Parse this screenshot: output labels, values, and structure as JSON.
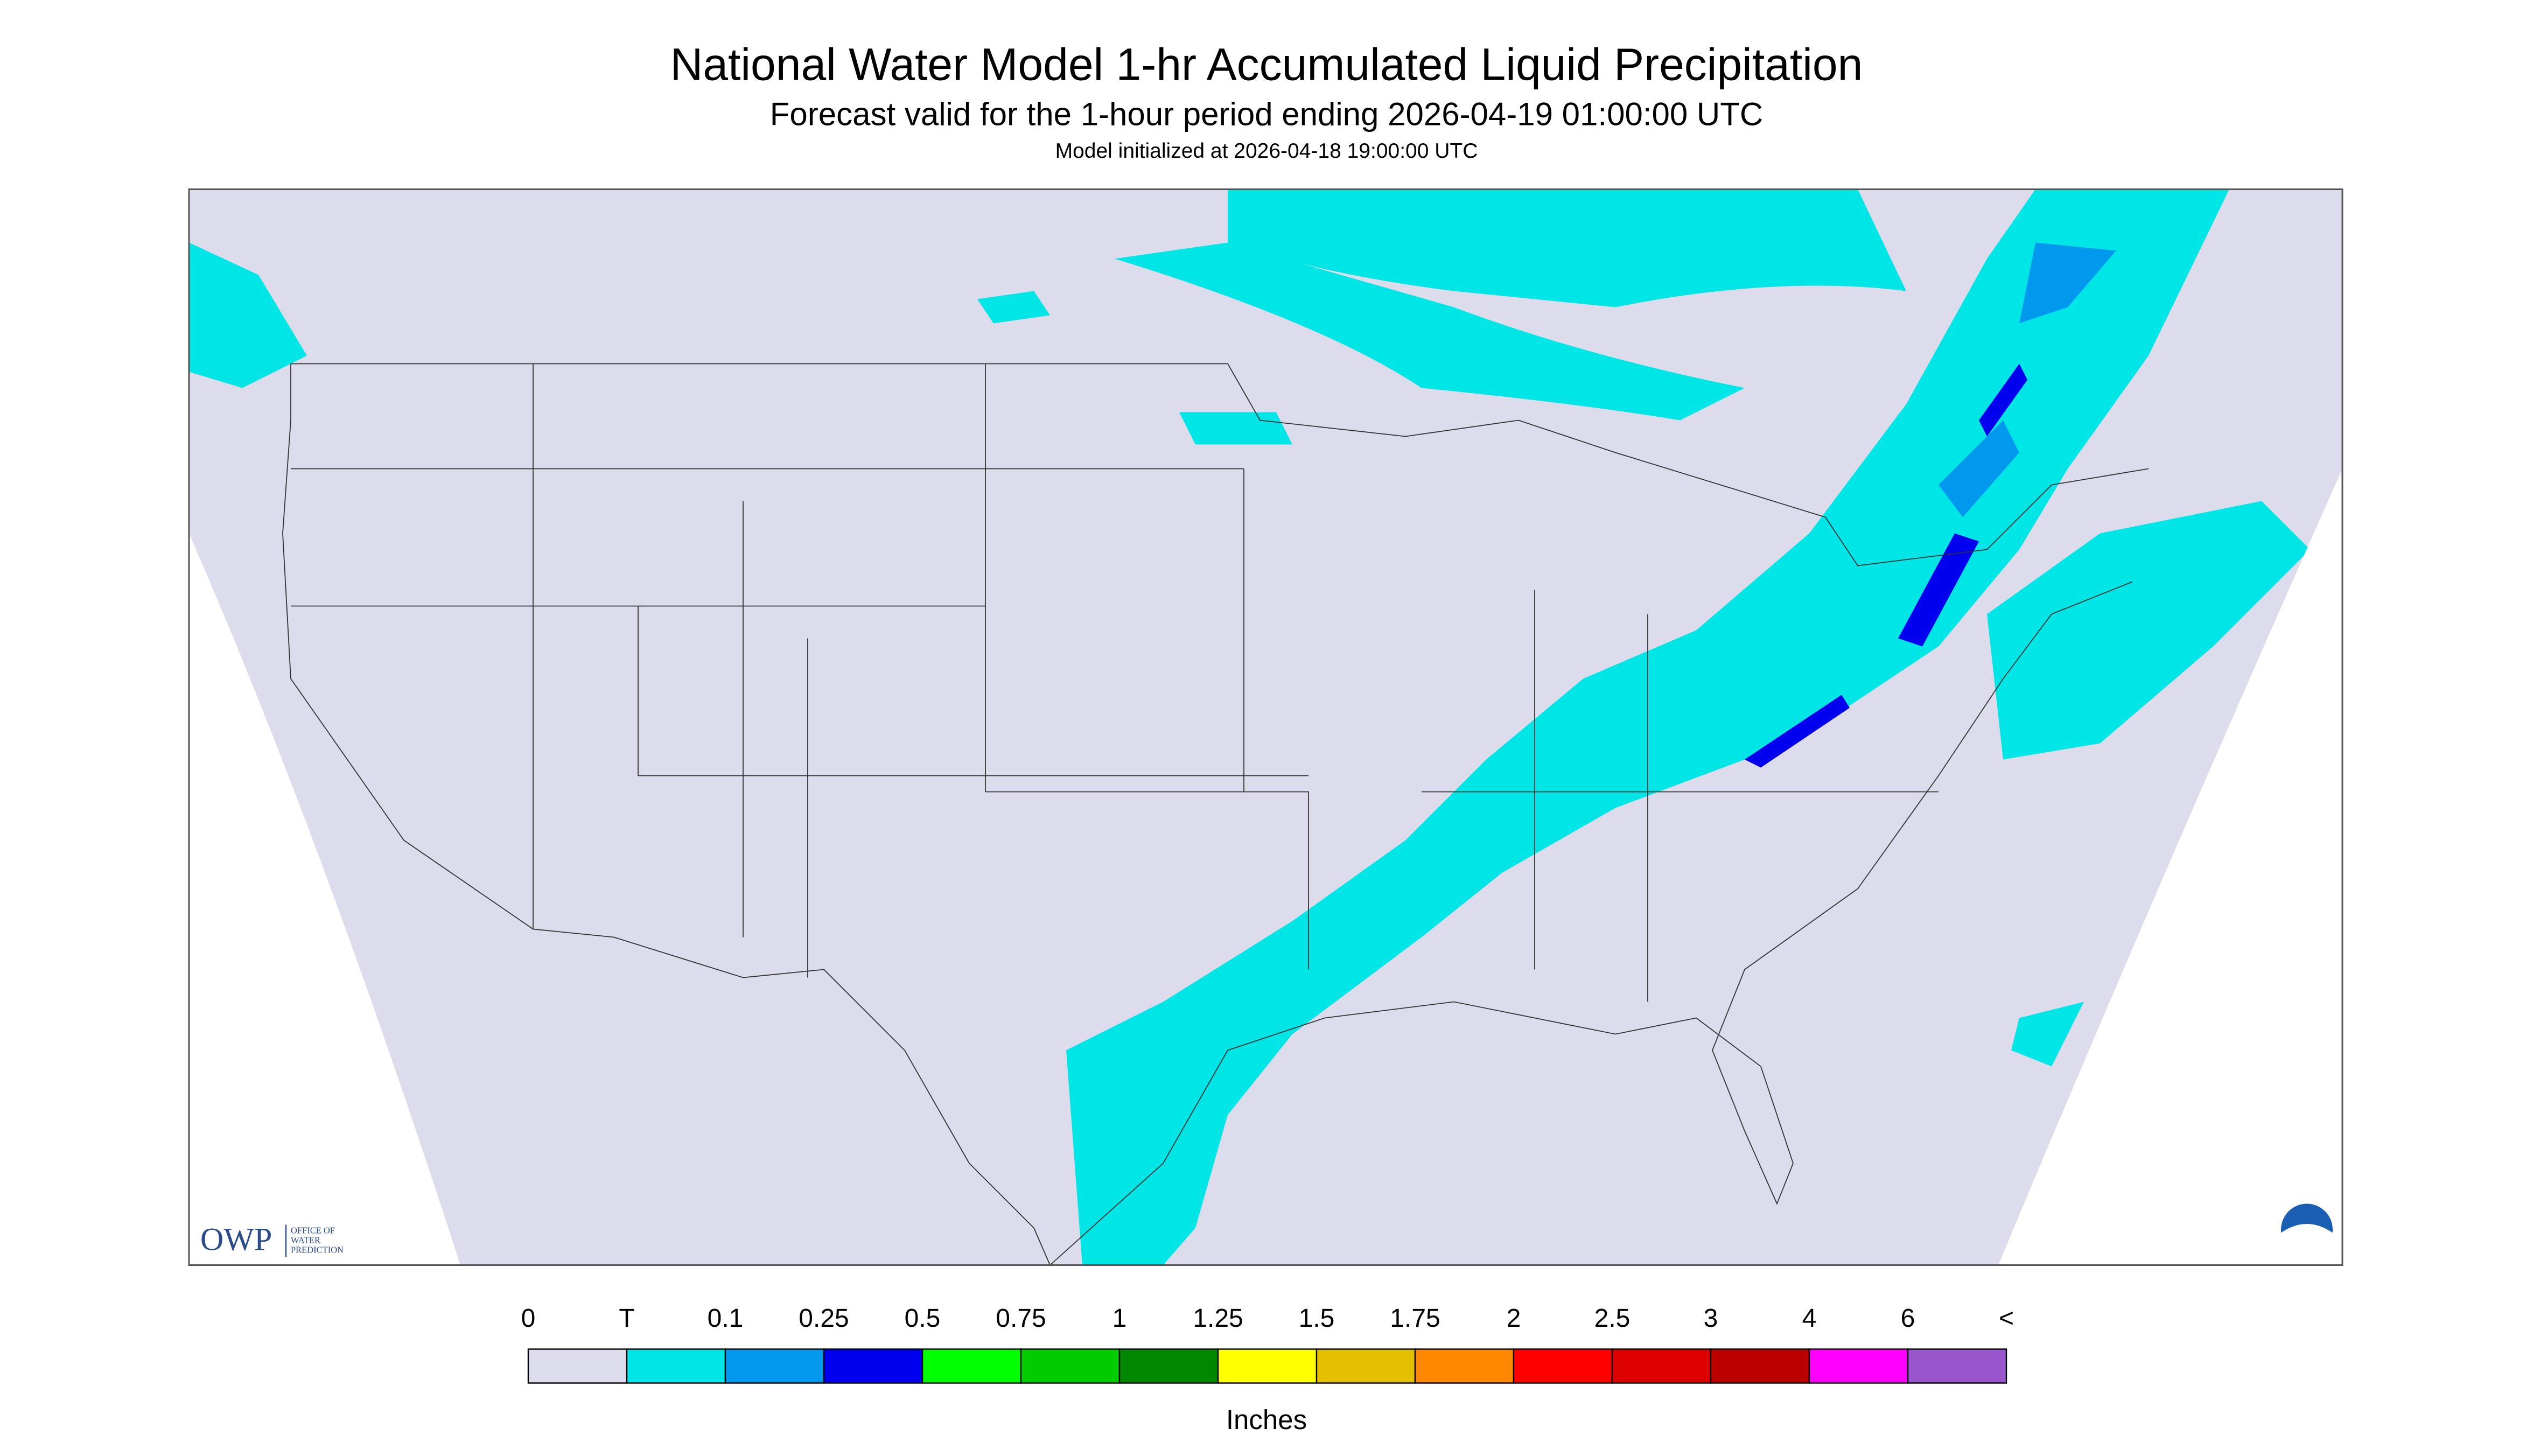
{
  "header": {
    "title": "National Water Model 1-hr Accumulated Liquid Precipitation",
    "subtitle": "Forecast valid for the 1-hour period ending 2026-04-19 01:00:00 UTC",
    "init": "Model initialized at 2026-04-18 19:00:00 UTC"
  },
  "logo": {
    "acronym": "OWP",
    "line1": "OFFICE OF",
    "line2": "WATER",
    "line3": "PREDICTION"
  },
  "legend": {
    "labels": [
      "0",
      "T",
      "0.1",
      "0.25",
      "0.5",
      "0.75",
      "1",
      "1.25",
      "1.5",
      "1.75",
      "2",
      "2.5",
      "3",
      "4",
      "6",
      "<"
    ],
    "colors": [
      "#dcdcec",
      "#00e5e5",
      "#0099ee",
      "#0000ee",
      "#00ff00",
      "#00cc00",
      "#008800",
      "#ffff00",
      "#e5c000",
      "#ff8800",
      "#ff0000",
      "#dd0000",
      "#bb0000",
      "#ff00ff",
      "#9955cc"
    ],
    "unit": "Inches"
  }
}
